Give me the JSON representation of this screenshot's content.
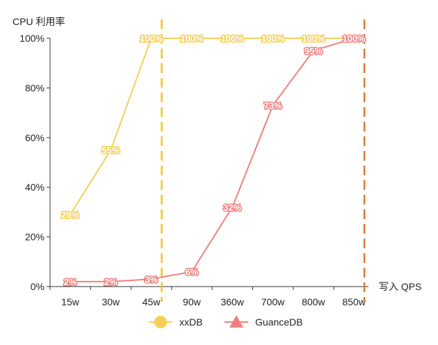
{
  "chart_data": {
    "type": "line",
    "ylabel": "CPU 利用率",
    "xlabel": "写入 QPS",
    "categories": [
      "15w",
      "30w",
      "45w",
      "90w",
      "360w",
      "700w",
      "800w",
      "850w"
    ],
    "ylim": [
      0,
      100
    ],
    "yticks": [
      "0%",
      "20%",
      "40%",
      "60%",
      "80%",
      "100%"
    ],
    "ytick_values": [
      0,
      20,
      40,
      60,
      80,
      100
    ],
    "grid": false,
    "legend_position": "bottom",
    "series": [
      {
        "name": "xxDB",
        "marker": "circle",
        "color": "#f6cf5a",
        "label_stroke": "#f6cf5a",
        "values": [
          29,
          55,
          100,
          100,
          100,
          100,
          100,
          100
        ],
        "labels": [
          "29%",
          "55%",
          "100%",
          "100%",
          "100%",
          "100%",
          "100%",
          "100%"
        ]
      },
      {
        "name": "GuanceDB",
        "marker": "triangle",
        "color": "#f08080",
        "label_stroke": "#f08080",
        "values": [
          2,
          2,
          3,
          6,
          32,
          73,
          95,
          100
        ],
        "labels": [
          "2%",
          "2%",
          "3%",
          "6%",
          "32%",
          "73%",
          "95%",
          "100%"
        ]
      }
    ],
    "reference_lines": [
      {
        "category": "45w",
        "color": "#f5c518"
      },
      {
        "category": "850w",
        "color": "#d9773a"
      }
    ]
  }
}
